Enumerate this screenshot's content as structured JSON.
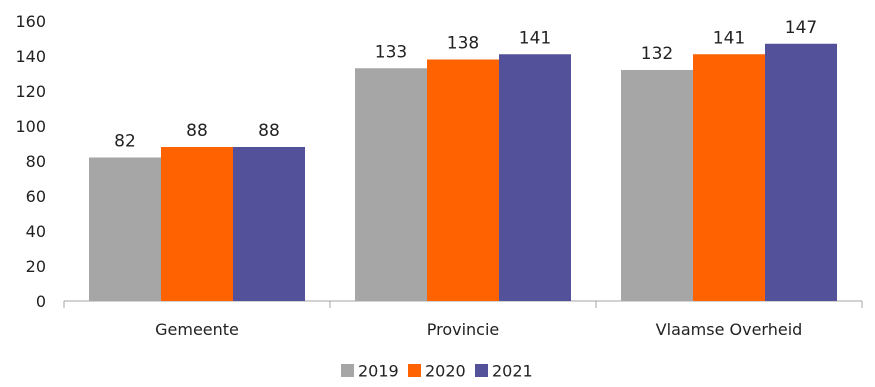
{
  "chart_data": {
    "type": "bar",
    "title": "",
    "xlabel": "",
    "ylabel": "",
    "categories": [
      "Gemeente",
      "Provincie",
      "Vlaamse Overheid"
    ],
    "series": [
      {
        "name": "2019",
        "values": [
          82,
          133,
          132
        ],
        "color": "#a6a6a6"
      },
      {
        "name": "2020",
        "values": [
          88,
          138,
          141
        ],
        "color": "#ff6200"
      },
      {
        "name": "2021",
        "values": [
          88,
          141,
          147
        ],
        "color": "#525199"
      }
    ],
    "ylim": [
      0,
      160
    ],
    "yticks": [
      0,
      20,
      40,
      60,
      80,
      100,
      120,
      140,
      160
    ],
    "grid": false,
    "legend_position": "bottom-center",
    "data_labels": true
  }
}
